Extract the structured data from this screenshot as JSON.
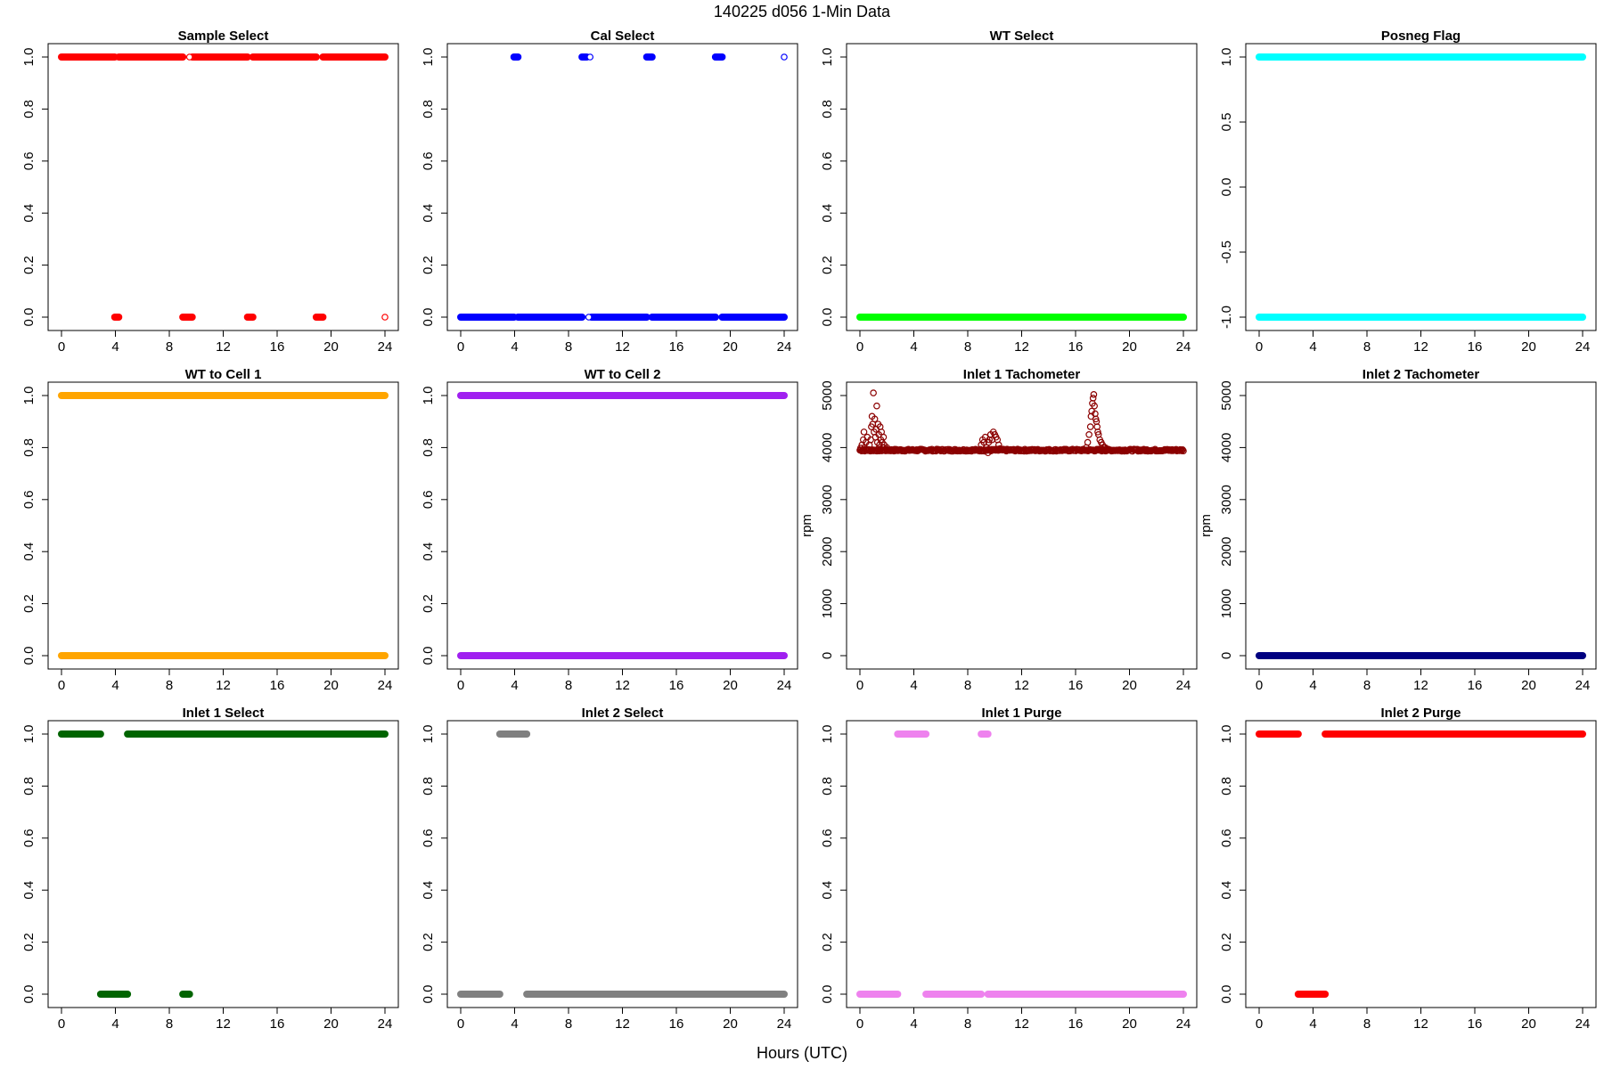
{
  "figure": {
    "title": "140225   d056   1-Min Data",
    "xlabel": "Hours (UTC)"
  },
  "chart_data": [
    {
      "type": "scatter",
      "title": "Sample Select",
      "color": "#ff0000",
      "xlim": [
        0,
        24
      ],
      "ylim": [
        0,
        1
      ],
      "xticks": [
        0,
        4,
        8,
        12,
        16,
        20,
        24
      ],
      "yticks": [
        0.0,
        0.2,
        0.4,
        0.6,
        0.8,
        1.0
      ],
      "ytick_labels": [
        "0.0",
        "0.2",
        "0.4",
        "0.6",
        "0.8",
        "1.0"
      ],
      "ylabel": "",
      "segments": [
        {
          "x": [
            0,
            3.95
          ],
          "y": 1
        },
        {
          "x": [
            4.25,
            9.0
          ],
          "y": 1
        },
        {
          "x": [
            9.7,
            13.8
          ],
          "y": 1
        },
        {
          "x": [
            14.2,
            18.9
          ],
          "y": 1
        },
        {
          "x": [
            19.4,
            24
          ],
          "y": 1
        },
        {
          "x": [
            3.95,
            4.25
          ],
          "y": 0
        },
        {
          "x": [
            9.0,
            9.7
          ],
          "y": 0
        },
        {
          "x": [
            13.8,
            14.2
          ],
          "y": 0
        },
        {
          "x": [
            18.9,
            19.4
          ],
          "y": 0
        }
      ],
      "points": [
        {
          "x": 9.5,
          "y": 1
        },
        {
          "x": 24.0,
          "y": 0
        }
      ]
    },
    {
      "type": "scatter",
      "title": "Cal Select",
      "color": "#0000ff",
      "xlim": [
        0,
        24
      ],
      "ylim": [
        0,
        1
      ],
      "xticks": [
        0,
        4,
        8,
        12,
        16,
        20,
        24
      ],
      "yticks": [
        0.0,
        0.2,
        0.4,
        0.6,
        0.8,
        1.0
      ],
      "ytick_labels": [
        "0.0",
        "0.2",
        "0.4",
        "0.6",
        "0.8",
        "1.0"
      ],
      "ylabel": "",
      "segments": [
        {
          "x": [
            0,
            3.95
          ],
          "y": 0
        },
        {
          "x": [
            4.25,
            9.0
          ],
          "y": 0
        },
        {
          "x": [
            9.7,
            13.8
          ],
          "y": 0
        },
        {
          "x": [
            14.2,
            18.9
          ],
          "y": 0
        },
        {
          "x": [
            19.4,
            24
          ],
          "y": 0
        },
        {
          "x": [
            3.95,
            4.25
          ],
          "y": 1
        },
        {
          "x": [
            9.0,
            9.35
          ],
          "y": 1
        },
        {
          "x": [
            13.8,
            14.2
          ],
          "y": 1
        },
        {
          "x": [
            18.9,
            19.4
          ],
          "y": 1
        }
      ],
      "points": [
        {
          "x": 9.5,
          "y": 0
        },
        {
          "x": 9.6,
          "y": 1
        },
        {
          "x": 24.0,
          "y": 1
        }
      ]
    },
    {
      "type": "scatter",
      "title": "WT Select",
      "color": "#00ff00",
      "xlim": [
        0,
        24
      ],
      "ylim": [
        0,
        1
      ],
      "xticks": [
        0,
        4,
        8,
        12,
        16,
        20,
        24
      ],
      "yticks": [
        0.0,
        0.2,
        0.4,
        0.6,
        0.8,
        1.0
      ],
      "ytick_labels": [
        "0.0",
        "0.2",
        "0.4",
        "0.6",
        "0.8",
        "1.0"
      ],
      "ylabel": "",
      "segments": [
        {
          "x": [
            0,
            24
          ],
          "y": 0
        }
      ],
      "points": []
    },
    {
      "type": "scatter",
      "title": "Posneg Flag",
      "color": "#00ffff",
      "xlim": [
        0,
        24
      ],
      "ylim": [
        -1,
        1
      ],
      "xticks": [
        0,
        4,
        8,
        12,
        16,
        20,
        24
      ],
      "yticks": [
        -1.0,
        -0.5,
        0.0,
        0.5,
        1.0
      ],
      "ytick_labels": [
        "-1.0",
        "-0.5",
        "0.0",
        "0.5",
        "1.0"
      ],
      "ylabel": "",
      "segments": [
        {
          "x": [
            0,
            24
          ],
          "y": 1
        },
        {
          "x": [
            0,
            24
          ],
          "y": -1
        }
      ],
      "points": []
    },
    {
      "type": "scatter",
      "title": "WT to Cell 1",
      "color": "#ffa500",
      "xlim": [
        0,
        24
      ],
      "ylim": [
        0,
        1
      ],
      "xticks": [
        0,
        4,
        8,
        12,
        16,
        20,
        24
      ],
      "yticks": [
        0.0,
        0.2,
        0.4,
        0.6,
        0.8,
        1.0
      ],
      "ytick_labels": [
        "0.0",
        "0.2",
        "0.4",
        "0.6",
        "0.8",
        "1.0"
      ],
      "ylabel": "",
      "segments": [
        {
          "x": [
            0,
            24
          ],
          "y": 1
        },
        {
          "x": [
            0,
            24
          ],
          "y": 0
        }
      ],
      "points": []
    },
    {
      "type": "scatter",
      "title": "WT to Cell 2",
      "color": "#a020f0",
      "xlim": [
        0,
        24
      ],
      "ylim": [
        0,
        1
      ],
      "xticks": [
        0,
        4,
        8,
        12,
        16,
        20,
        24
      ],
      "yticks": [
        0.0,
        0.2,
        0.4,
        0.6,
        0.8,
        1.0
      ],
      "ytick_labels": [
        "0.0",
        "0.2",
        "0.4",
        "0.6",
        "0.8",
        "1.0"
      ],
      "ylabel": "",
      "segments": [
        {
          "x": [
            0,
            24
          ],
          "y": 1
        },
        {
          "x": [
            0,
            24
          ],
          "y": 0
        }
      ],
      "points": []
    },
    {
      "type": "scatter",
      "title": "Inlet 1 Tachometer",
      "color": "#8b0000",
      "xlim": [
        0,
        24
      ],
      "ylim": [
        0,
        5000
      ],
      "xticks": [
        0,
        4,
        8,
        12,
        16,
        20,
        24
      ],
      "yticks": [
        0,
        1000,
        2000,
        3000,
        4000,
        5000
      ],
      "ytick_labels": [
        "0",
        "1000",
        "2000",
        "3000",
        "4000",
        "5000"
      ],
      "ylabel": "rpm",
      "segments": [],
      "points": [
        {
          "x": 0.05,
          "y": 3990
        },
        {
          "x": 0.15,
          "y": 4050
        },
        {
          "x": 0.25,
          "y": 4150
        },
        {
          "x": 0.3,
          "y": 4300
        },
        {
          "x": 0.35,
          "y": 4000
        },
        {
          "x": 0.45,
          "y": 4100
        },
        {
          "x": 0.55,
          "y": 4200
        },
        {
          "x": 0.6,
          "y": 3960
        },
        {
          "x": 0.7,
          "y": 4050
        },
        {
          "x": 0.8,
          "y": 4150
        },
        {
          "x": 0.85,
          "y": 4400
        },
        {
          "x": 0.9,
          "y": 4600
        },
        {
          "x": 0.95,
          "y": 4450
        },
        {
          "x": 1.0,
          "y": 5050
        },
        {
          "x": 1.05,
          "y": 4300
        },
        {
          "x": 1.1,
          "y": 4550
        },
        {
          "x": 1.15,
          "y": 4200
        },
        {
          "x": 1.2,
          "y": 4350
        },
        {
          "x": 1.25,
          "y": 4800
        },
        {
          "x": 1.3,
          "y": 4100
        },
        {
          "x": 1.35,
          "y": 4450
        },
        {
          "x": 1.4,
          "y": 4250
        },
        {
          "x": 1.45,
          "y": 4050
        },
        {
          "x": 1.5,
          "y": 4400
        },
        {
          "x": 1.55,
          "y": 4150
        },
        {
          "x": 1.6,
          "y": 4300
        },
        {
          "x": 1.65,
          "y": 4100
        },
        {
          "x": 1.7,
          "y": 4000
        },
        {
          "x": 1.75,
          "y": 4200
        },
        {
          "x": 1.8,
          "y": 4050
        },
        {
          "x": 1.9,
          "y": 3960
        },
        {
          "x": 2.0,
          "y": 4000
        },
        {
          "x": 2.1,
          "y": 3950
        },
        {
          "x": 9.0,
          "y": 4050
        },
        {
          "x": 9.1,
          "y": 4150
        },
        {
          "x": 9.2,
          "y": 4100
        },
        {
          "x": 9.3,
          "y": 4200
        },
        {
          "x": 9.4,
          "y": 4000
        },
        {
          "x": 9.5,
          "y": 3900
        },
        {
          "x": 9.55,
          "y": 4100
        },
        {
          "x": 9.6,
          "y": 4150
        },
        {
          "x": 9.7,
          "y": 4250
        },
        {
          "x": 9.8,
          "y": 4150
        },
        {
          "x": 9.9,
          "y": 4300
        },
        {
          "x": 10.0,
          "y": 4250
        },
        {
          "x": 10.1,
          "y": 4200
        },
        {
          "x": 10.2,
          "y": 4150
        },
        {
          "x": 10.3,
          "y": 4050
        },
        {
          "x": 10.4,
          "y": 3980
        },
        {
          "x": 16.8,
          "y": 4000
        },
        {
          "x": 16.9,
          "y": 4100
        },
        {
          "x": 17.0,
          "y": 4250
        },
        {
          "x": 17.1,
          "y": 4400
        },
        {
          "x": 17.15,
          "y": 4600
        },
        {
          "x": 17.2,
          "y": 4700
        },
        {
          "x": 17.25,
          "y": 4850
        },
        {
          "x": 17.3,
          "y": 4950
        },
        {
          "x": 17.35,
          "y": 5020
        },
        {
          "x": 17.4,
          "y": 4800
        },
        {
          "x": 17.45,
          "y": 4650
        },
        {
          "x": 17.5,
          "y": 4550
        },
        {
          "x": 17.55,
          "y": 4500
        },
        {
          "x": 17.6,
          "y": 4400
        },
        {
          "x": 17.65,
          "y": 4300
        },
        {
          "x": 17.7,
          "y": 4250
        },
        {
          "x": 17.8,
          "y": 4150
        },
        {
          "x": 17.9,
          "y": 4100
        },
        {
          "x": 18.0,
          "y": 4050
        },
        {
          "x": 18.1,
          "y": 4000
        },
        {
          "x": 18.2,
          "y": 4000
        },
        {
          "x": 18.3,
          "y": 3970
        }
      ],
      "baseline": {
        "x": [
          0,
          24
        ],
        "y": 3950,
        "jitter": 40
      }
    },
    {
      "type": "scatter",
      "title": "Inlet 2 Tachometer",
      "color": "#000080",
      "xlim": [
        0,
        24
      ],
      "ylim": [
        0,
        5000
      ],
      "xticks": [
        0,
        4,
        8,
        12,
        16,
        20,
        24
      ],
      "yticks": [
        0,
        1000,
        2000,
        3000,
        4000,
        5000
      ],
      "ytick_labels": [
        "0",
        "1000",
        "2000",
        "3000",
        "4000",
        "5000"
      ],
      "ylabel": "rpm",
      "segments": [
        {
          "x": [
            0,
            24
          ],
          "y": 0
        }
      ],
      "points": []
    },
    {
      "type": "scatter",
      "title": "Inlet 1 Select",
      "color": "#006400",
      "xlim": [
        0,
        24
      ],
      "ylim": [
        0,
        1
      ],
      "xticks": [
        0,
        4,
        8,
        12,
        16,
        20,
        24
      ],
      "yticks": [
        0.0,
        0.2,
        0.4,
        0.6,
        0.8,
        1.0
      ],
      "ytick_labels": [
        "0.0",
        "0.2",
        "0.4",
        "0.6",
        "0.8",
        "1.0"
      ],
      "ylabel": "",
      "segments": [
        {
          "x": [
            0,
            2.9
          ],
          "y": 1
        },
        {
          "x": [
            4.9,
            24
          ],
          "y": 1
        },
        {
          "x": [
            2.9,
            4.9
          ],
          "y": 0
        },
        {
          "x": [
            9.0,
            9.5
          ],
          "y": 0
        }
      ],
      "points": []
    },
    {
      "type": "scatter",
      "title": "Inlet 2 Select",
      "color": "#808080",
      "xlim": [
        0,
        24
      ],
      "ylim": [
        0,
        1
      ],
      "xticks": [
        0,
        4,
        8,
        12,
        16,
        20,
        24
      ],
      "yticks": [
        0.0,
        0.2,
        0.4,
        0.6,
        0.8,
        1.0
      ],
      "ytick_labels": [
        "0.0",
        "0.2",
        "0.4",
        "0.6",
        "0.8",
        "1.0"
      ],
      "ylabel": "",
      "segments": [
        {
          "x": [
            2.9,
            4.9
          ],
          "y": 1
        },
        {
          "x": [
            0,
            2.9
          ],
          "y": 0
        },
        {
          "x": [
            4.9,
            24
          ],
          "y": 0
        }
      ],
      "points": []
    },
    {
      "type": "scatter",
      "title": "Inlet 1 Purge",
      "color": "#ee82ee",
      "xlim": [
        0,
        24
      ],
      "ylim": [
        0,
        1
      ],
      "xticks": [
        0,
        4,
        8,
        12,
        16,
        20,
        24
      ],
      "yticks": [
        0.0,
        0.2,
        0.4,
        0.6,
        0.8,
        1.0
      ],
      "ytick_labels": [
        "0.0",
        "0.2",
        "0.4",
        "0.6",
        "0.8",
        "1.0"
      ],
      "ylabel": "",
      "segments": [
        {
          "x": [
            2.8,
            4.9
          ],
          "y": 1
        },
        {
          "x": [
            9.0,
            9.5
          ],
          "y": 1
        },
        {
          "x": [
            0,
            2.8
          ],
          "y": 0
        },
        {
          "x": [
            4.9,
            9.0
          ],
          "y": 0
        },
        {
          "x": [
            9.5,
            24
          ],
          "y": 0
        }
      ],
      "points": []
    },
    {
      "type": "scatter",
      "title": "Inlet 2 Purge",
      "color": "#ff0000",
      "xlim": [
        0,
        24
      ],
      "ylim": [
        0,
        1
      ],
      "xticks": [
        0,
        4,
        8,
        12,
        16,
        20,
        24
      ],
      "yticks": [
        0.0,
        0.2,
        0.4,
        0.6,
        0.8,
        1.0
      ],
      "ytick_labels": [
        "0.0",
        "0.2",
        "0.4",
        "0.6",
        "0.8",
        "1.0"
      ],
      "ylabel": "",
      "segments": [
        {
          "x": [
            0,
            2.9
          ],
          "y": 1
        },
        {
          "x": [
            4.9,
            24
          ],
          "y": 1
        },
        {
          "x": [
            2.9,
            4.9
          ],
          "y": 0
        }
      ],
      "points": []
    }
  ]
}
